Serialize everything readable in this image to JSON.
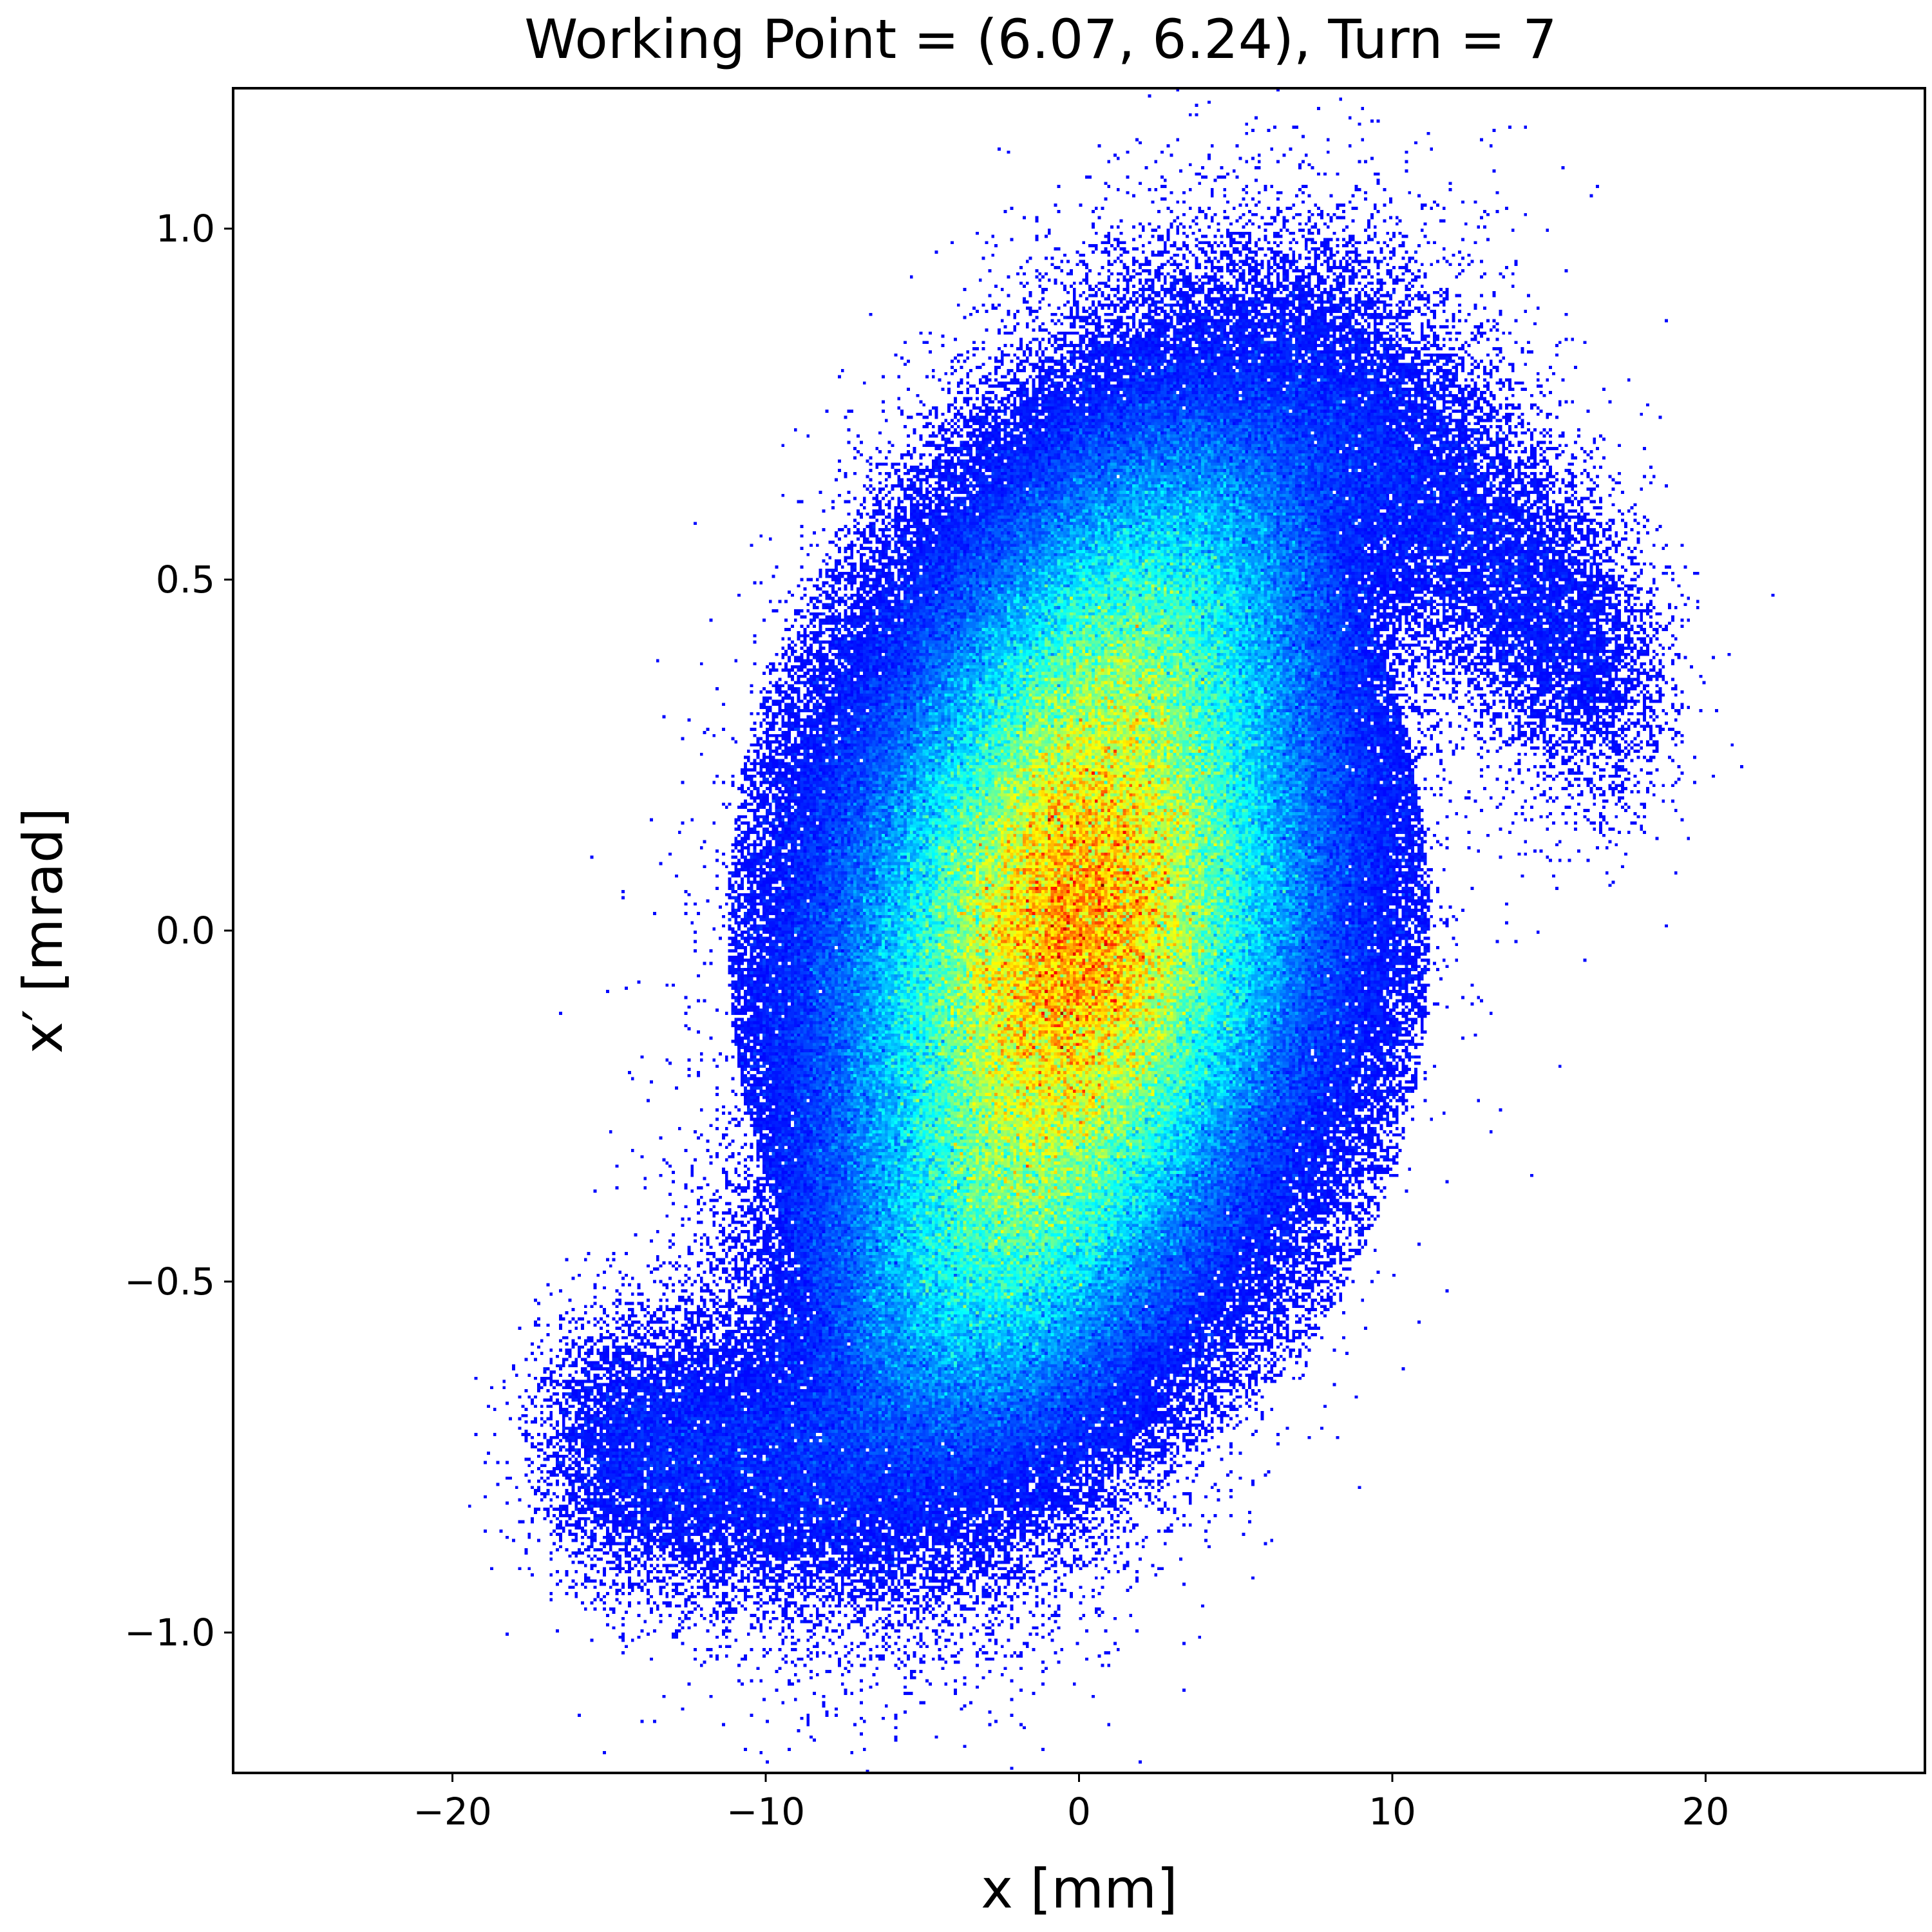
{
  "chart_data": {
    "type": "heatmap",
    "title": "Working Point = (6.07, 6.24), Turn = 7",
    "xlabel": "x [mm]",
    "ylabel": "x′ [mrad]",
    "xlim": [
      -27,
      27
    ],
    "ylim": [
      -1.2,
      1.2
    ],
    "xticks": [
      -20,
      -10,
      0,
      10,
      20
    ],
    "xtick_labels": [
      "−20",
      "−10",
      "0",
      "10",
      "20"
    ],
    "yticks": [
      -1.0,
      -0.5,
      0.0,
      0.5,
      1.0
    ],
    "ytick_labels": [
      "−1.0",
      "−0.5",
      "0.0",
      "0.5",
      "1.0"
    ],
    "grid": true,
    "colormap": "jet",
    "density_peak": [
      0.0,
      0.0
    ],
    "distribution": {
      "core_center": [
        0.0,
        0.0
      ],
      "core_extent_x": [
        -11.5,
        11.5
      ],
      "core_extent_xp": [
        -0.8,
        0.8
      ],
      "upper_right_tail_end": [
        17.0,
        0.75
      ],
      "lower_left_tail_end": [
        -15.5,
        -0.85
      ]
    }
  },
  "colors": {
    "low": "#00008f",
    "mid_low": "#0050ff",
    "mid": "#00d8ff",
    "mid_high": "#e8ff18",
    "high": "#cc0000"
  }
}
